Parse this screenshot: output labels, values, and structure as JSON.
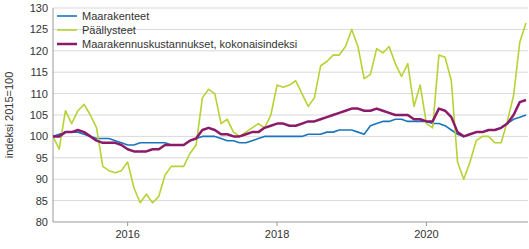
{
  "chart_data": {
    "type": "line",
    "y_label": "indeksi 2015=100",
    "categories": [
      null,
      null,
      null,
      null,
      null,
      null,
      null,
      null,
      null,
      null,
      null,
      null,
      "2016",
      null,
      null,
      null,
      null,
      null,
      null,
      null,
      null,
      null,
      null,
      null,
      null,
      null,
      null,
      null,
      null,
      null,
      null,
      null,
      null,
      null,
      null,
      null,
      "2018",
      null,
      null,
      null,
      null,
      null,
      null,
      null,
      null,
      null,
      null,
      null,
      null,
      null,
      null,
      null,
      null,
      null,
      null,
      null,
      null,
      null,
      null,
      null,
      "2020",
      null,
      null,
      null,
      null,
      null,
      null,
      null,
      null,
      null,
      null,
      null,
      null,
      null,
      null,
      null,
      null
    ],
    "series": [
      {
        "name": "Maarakenteet",
        "color": "#1b75bc",
        "values": [
          100,
          100.5,
          101,
          101,
          101,
          100.5,
          100,
          99.5,
          99.5,
          99.5,
          99,
          98.5,
          98,
          98,
          98.5,
          98.5,
          98.5,
          98.5,
          98.5,
          98,
          98,
          98,
          99,
          99.5,
          100,
          100,
          100,
          99.5,
          99,
          99,
          98.5,
          98.5,
          99,
          99.5,
          100,
          100,
          100,
          100,
          100,
          100,
          100,
          100.5,
          100.5,
          100.5,
          101,
          101,
          101.5,
          101.5,
          101.5,
          101,
          100.5,
          102.5,
          103,
          103.5,
          103.5,
          104,
          104,
          103.5,
          103.5,
          103.5,
          103.5,
          103,
          103,
          102.5,
          101.5,
          100.5,
          100,
          100.5,
          101,
          101,
          101.5,
          101.5,
          102,
          103,
          104,
          104.5,
          105
        ]
      },
      {
        "name": "Päällysteet",
        "color": "#b5d334",
        "values": [
          100,
          97,
          106,
          103,
          106,
          107.5,
          105,
          102,
          93,
          92,
          91.5,
          92,
          94,
          88,
          84.5,
          86.5,
          84.5,
          86,
          91,
          93,
          93,
          93,
          96,
          98,
          109,
          111,
          110,
          103,
          104,
          101,
          100,
          101,
          102,
          103,
          102,
          105,
          112,
          111.5,
          112,
          113,
          110,
          107,
          109,
          116.5,
          117.5,
          119,
          119,
          121,
          125,
          121,
          113.5,
          114.5,
          120.5,
          119.5,
          121,
          117,
          114,
          117,
          107,
          112,
          103,
          102,
          119,
          118.5,
          113,
          94,
          90,
          94,
          99,
          100,
          100,
          98.5,
          98.5,
          103.5,
          109.5,
          122,
          126.5
        ]
      },
      {
        "name": "Maarakennuskustannukset, kokonaisindeksi",
        "color": "#8b1a6b",
        "values": [
          100,
          100,
          101,
          101,
          101.5,
          101,
          100,
          99,
          98.5,
          98.5,
          98.5,
          98,
          97,
          96.5,
          96.5,
          96.5,
          97,
          97,
          98,
          98,
          98,
          98,
          99,
          99.5,
          101.5,
          102,
          101.5,
          100.5,
          100.5,
          100,
          100,
          100.5,
          101,
          101,
          102,
          102.5,
          103,
          103,
          102.5,
          102.5,
          103,
          103.5,
          103.5,
          104,
          104.5,
          105,
          105.5,
          106,
          106.5,
          106.5,
          106,
          106,
          106.5,
          106,
          105.5,
          105,
          105,
          105,
          104,
          104,
          103.5,
          103.5,
          106.5,
          106,
          104.5,
          101,
          100,
          100.5,
          101,
          101,
          101.5,
          101.5,
          102,
          103,
          105,
          108,
          108.5
        ]
      }
    ],
    "ylim": [
      80,
      130
    ],
    "yticks": [
      80,
      85,
      90,
      95,
      100,
      105,
      110,
      115,
      120,
      125,
      130
    ],
    "grid": true,
    "legend": "top-left"
  }
}
